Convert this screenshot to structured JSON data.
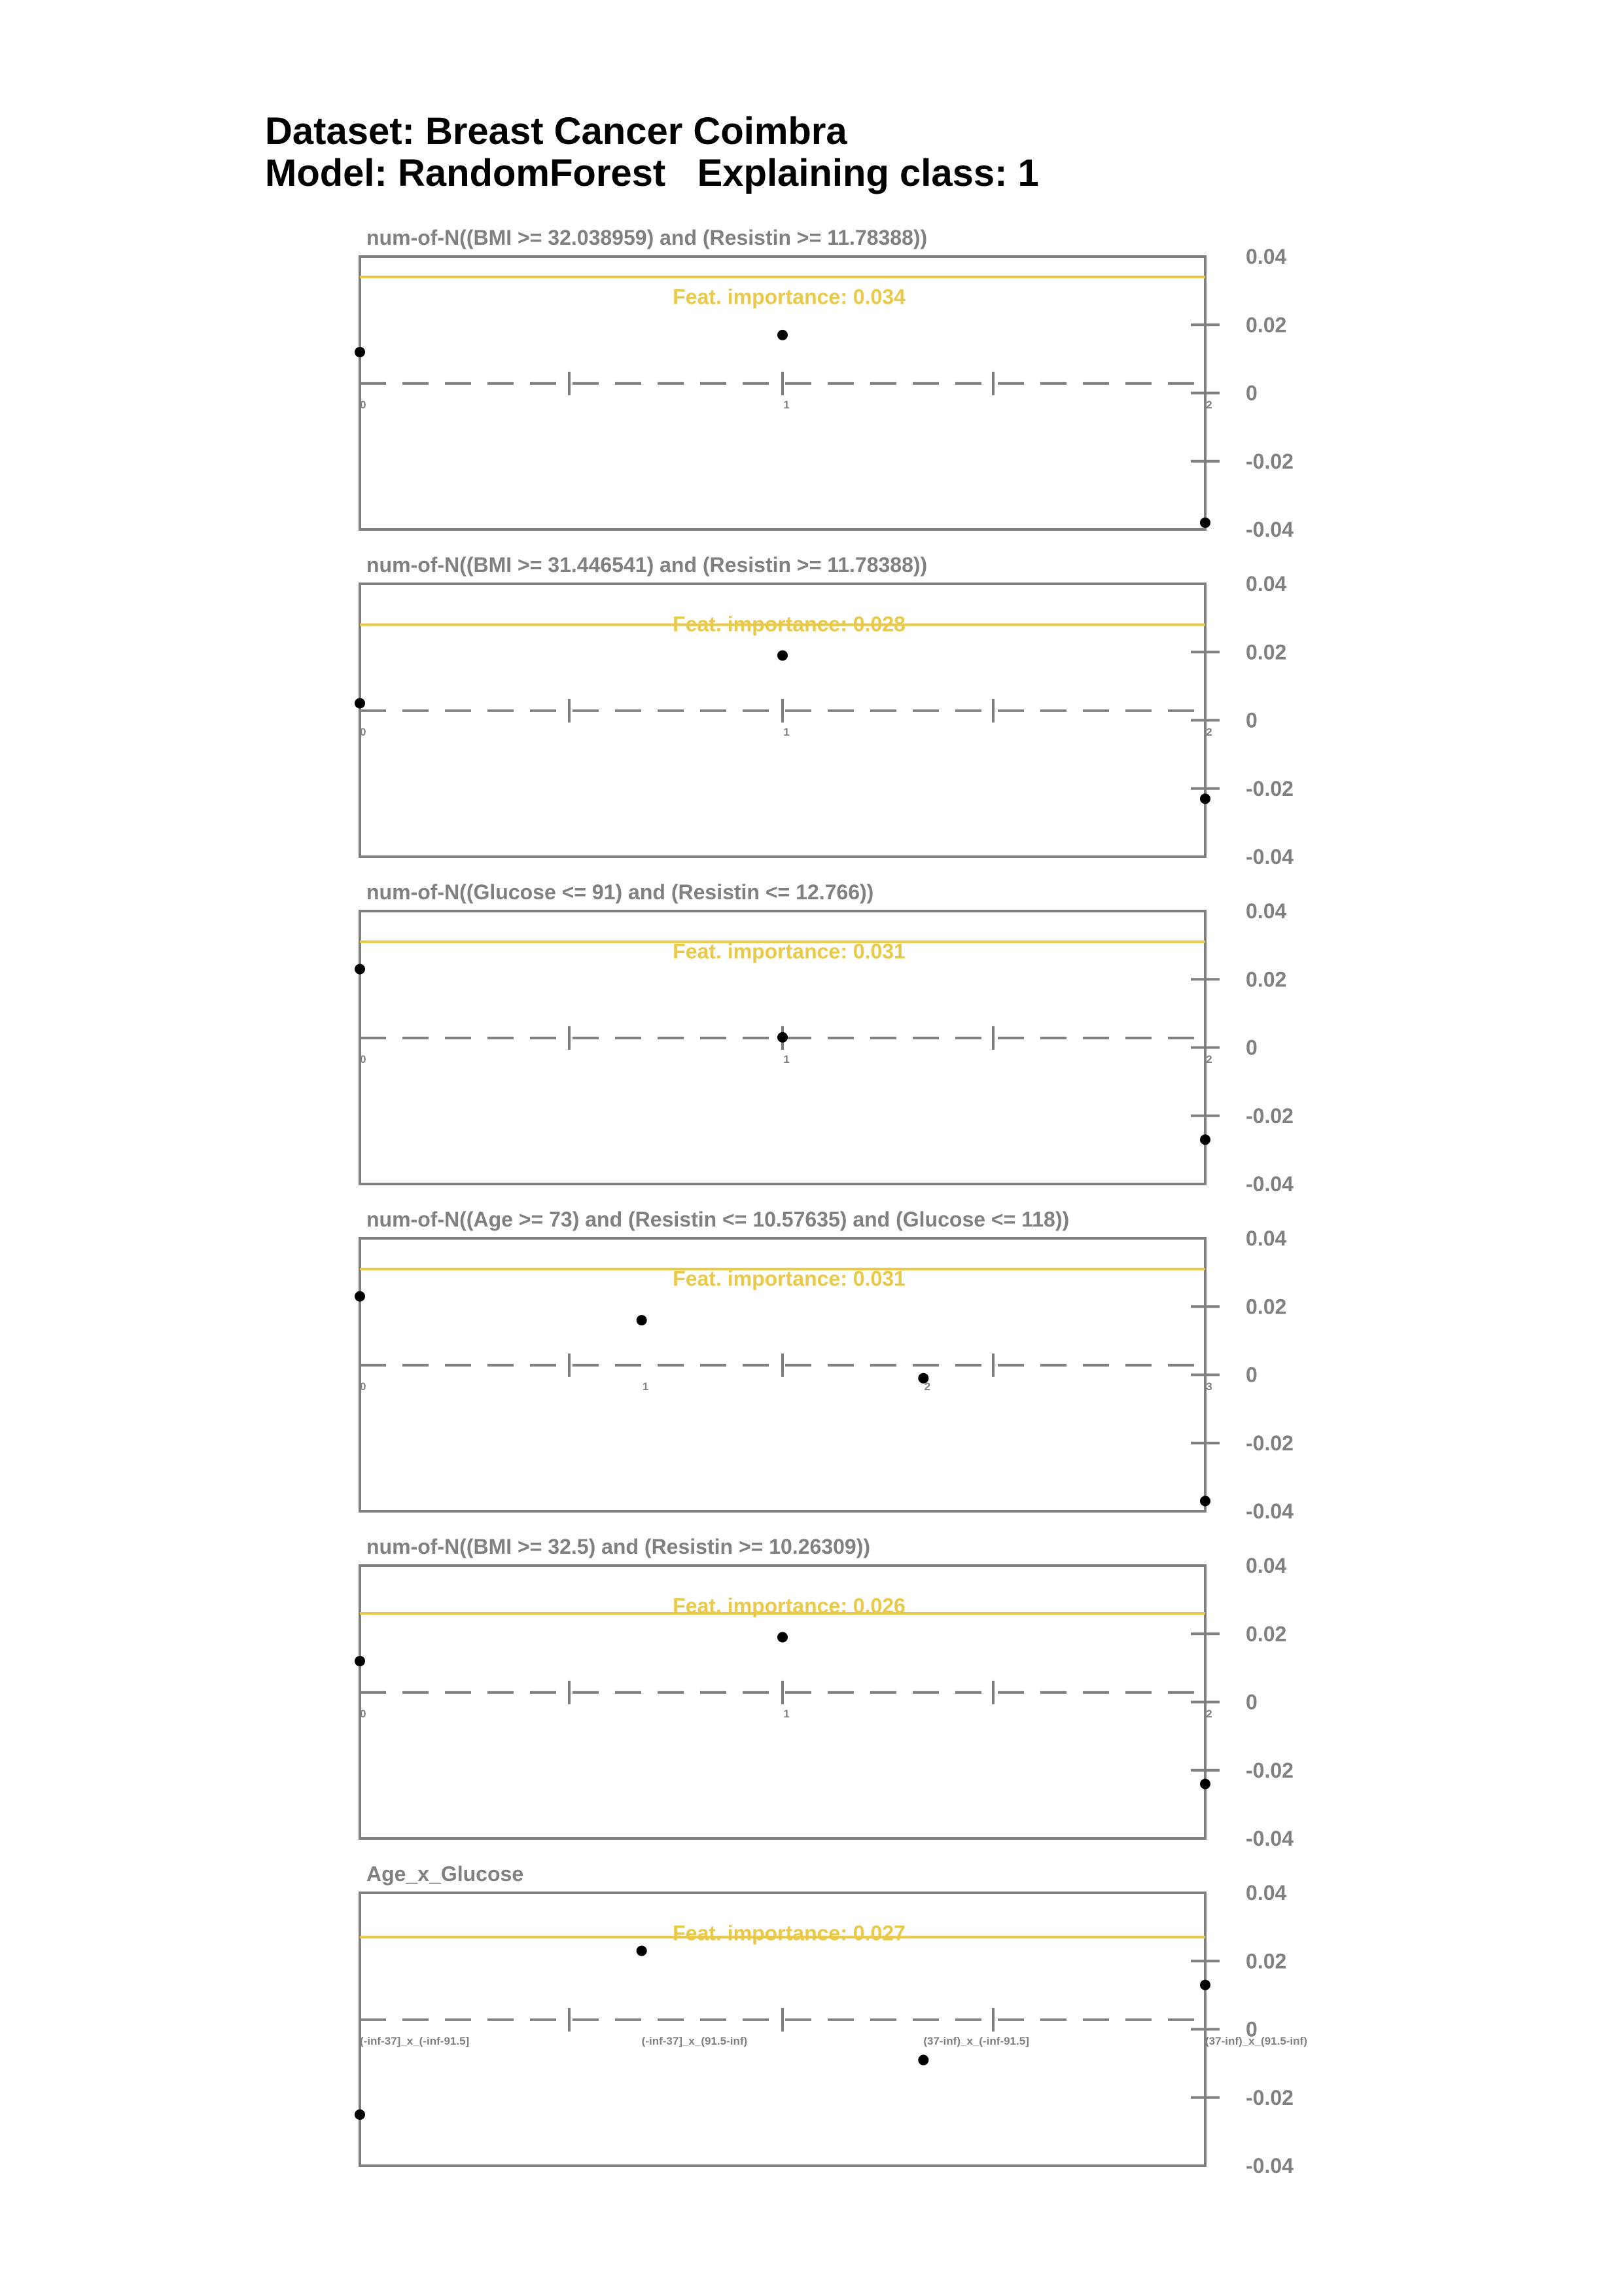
{
  "header": {
    "line1": "Dataset: Breast Cancer Coimbra",
    "line2": "Model: RandomForest   Explaining class: 1"
  },
  "colors": {
    "axis": "#808080",
    "importance_line": "#e8c94a",
    "points": "#000000",
    "text_gray": "#808080"
  },
  "chart_data": [
    {
      "type": "scatter",
      "title": "num-of-N((BMI >= 32.038959) and (Resistin >= 11.78388))",
      "importance_label": "Feat. importance: 0.034",
      "importance": 0.034,
      "x": [
        "0",
        "1",
        "2"
      ],
      "y": [
        0.012,
        0.017,
        -0.038
      ],
      "ylim": [
        -0.04,
        0.04
      ],
      "yticks": [
        "0.04",
        "0.02",
        "0",
        "-0.02",
        "-0.04"
      ],
      "grid": false
    },
    {
      "type": "scatter",
      "title": "num-of-N((BMI >= 31.446541) and (Resistin >= 11.78388))",
      "importance_label": "Feat. importance: 0.028",
      "importance": 0.028,
      "x": [
        "0",
        "1",
        "2"
      ],
      "y": [
        0.005,
        0.019,
        -0.023
      ],
      "ylim": [
        -0.04,
        0.04
      ],
      "yticks": [
        "0.04",
        "0.02",
        "0",
        "-0.02",
        "-0.04"
      ],
      "grid": false
    },
    {
      "type": "scatter",
      "title": "num-of-N((Glucose <= 91) and (Resistin <= 12.766))",
      "importance_label": "Feat. importance: 0.031",
      "importance": 0.031,
      "x": [
        "0",
        "1",
        "2"
      ],
      "y": [
        0.023,
        0.003,
        -0.027
      ],
      "ylim": [
        -0.04,
        0.04
      ],
      "yticks": [
        "0.04",
        "0.02",
        "0",
        "-0.02",
        "-0.04"
      ],
      "grid": false
    },
    {
      "type": "scatter",
      "title": "num-of-N((Age >= 73) and (Resistin <= 10.57635) and (Glucose <= 118))",
      "importance_label": "Feat. importance: 0.031",
      "importance": 0.031,
      "x": [
        "0",
        "1",
        "2",
        "3"
      ],
      "y": [
        0.023,
        0.016,
        -0.001,
        -0.037
      ],
      "ylim": [
        -0.04,
        0.04
      ],
      "yticks": [
        "0.04",
        "0.02",
        "0",
        "-0.02",
        "-0.04"
      ],
      "grid": false
    },
    {
      "type": "scatter",
      "title": "num-of-N((BMI >= 32.5) and (Resistin >= 10.26309))",
      "importance_label": "Feat. importance: 0.026",
      "importance": 0.026,
      "x": [
        "0",
        "1",
        "2"
      ],
      "y": [
        0.012,
        0.019,
        -0.024
      ],
      "ylim": [
        -0.04,
        0.04
      ],
      "yticks": [
        "0.04",
        "0.02",
        "0",
        "-0.02",
        "-0.04"
      ],
      "grid": false
    },
    {
      "type": "scatter",
      "title": "Age_x_Glucose",
      "importance_label": "Feat. importance: 0.027",
      "importance": 0.027,
      "x": [
        "(-inf-37]_x_(-inf-91.5]",
        "(-inf-37]_x_(91.5-inf)",
        "(37-inf)_x_(-inf-91.5]",
        "(37-inf)_x_(91.5-inf)"
      ],
      "y": [
        -0.025,
        0.023,
        -0.009,
        0.013
      ],
      "ylim": [
        -0.04,
        0.04
      ],
      "yticks": [
        "0.04",
        "0.02",
        "0",
        "-0.02",
        "-0.04"
      ],
      "grid": false
    }
  ]
}
